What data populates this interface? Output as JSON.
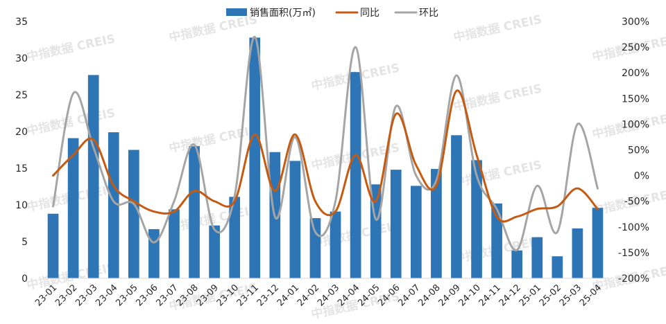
{
  "chart_data": {
    "type": "bar+line",
    "categories": [
      "23-01",
      "23-02",
      "23-03",
      "23-04",
      "23-05",
      "23-06",
      "23-07",
      "23-08",
      "23-09",
      "23-10",
      "23-11",
      "23-12",
      "24-01",
      "24-02",
      "24-03",
      "24-04",
      "24-05",
      "24-06",
      "24-07",
      "24-08",
      "24-09",
      "24-10",
      "24-11",
      "24-12",
      "25-01",
      "25-02",
      "25-03",
      "25-04"
    ],
    "series": [
      {
        "name": "销售面积(万㎡)",
        "kind": "bar",
        "axis": "left",
        "color": "#2e75b6",
        "values": [
          8.8,
          19.1,
          27.7,
          19.9,
          17.5,
          6.7,
          9.4,
          18.0,
          7.2,
          11.1,
          32.8,
          17.2,
          16.0,
          8.2,
          9.1,
          28.1,
          12.8,
          14.8,
          12.6,
          14.9,
          19.5,
          16.1,
          10.2,
          3.8,
          5.6,
          3.0,
          6.8,
          9.6
        ]
      },
      {
        "name": "同比",
        "kind": "line",
        "axis": "right",
        "color": "#c55a11",
        "values": [
          0,
          40,
          70,
          -20,
          -50,
          -70,
          -70,
          -30,
          -50,
          -50,
          80,
          -30,
          80,
          -50,
          -70,
          40,
          -50,
          120,
          20,
          -20,
          165,
          40,
          -80,
          -80,
          -65,
          -60,
          -25,
          -65
        ]
      },
      {
        "name": "环比",
        "kind": "line",
        "axis": "right",
        "color": "#a5a5a5",
        "values": [
          -60,
          160,
          55,
          -50,
          -55,
          -130,
          -50,
          60,
          -105,
          -40,
          270,
          -80,
          75,
          -110,
          -50,
          250,
          -85,
          135,
          0,
          -10,
          195,
          0,
          -65,
          -145,
          -20,
          -110,
          100,
          -25
        ]
      }
    ],
    "y_left": {
      "min": 0,
      "max": 35,
      "step": 5,
      "ticks": [
        "0",
        "5",
        "10",
        "15",
        "20",
        "25",
        "30",
        "35"
      ]
    },
    "y_right": {
      "min": -200,
      "max": 300,
      "step": 50,
      "ticks": [
        "-200%",
        "-150%",
        "-100%",
        "-50%",
        "0%",
        "50%",
        "100%",
        "150%",
        "200%",
        "250%",
        "300%"
      ]
    },
    "legend": "top",
    "grid": false,
    "watermark": "中指数据 CREIS"
  }
}
